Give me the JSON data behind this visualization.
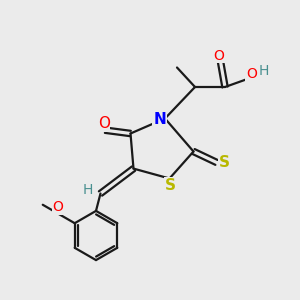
{
  "background_color": "#ebebeb",
  "bond_color": "#1a1a1a",
  "N_color": "#0000ff",
  "O_color": "#ff0000",
  "S_color": "#b8b800",
  "H_color": "#4a9090",
  "C_color": "#1a1a1a",
  "figsize": [
    3.0,
    3.0
  ],
  "dpi": 100,
  "xlim": [
    0,
    10
  ],
  "ylim": [
    0,
    10
  ]
}
